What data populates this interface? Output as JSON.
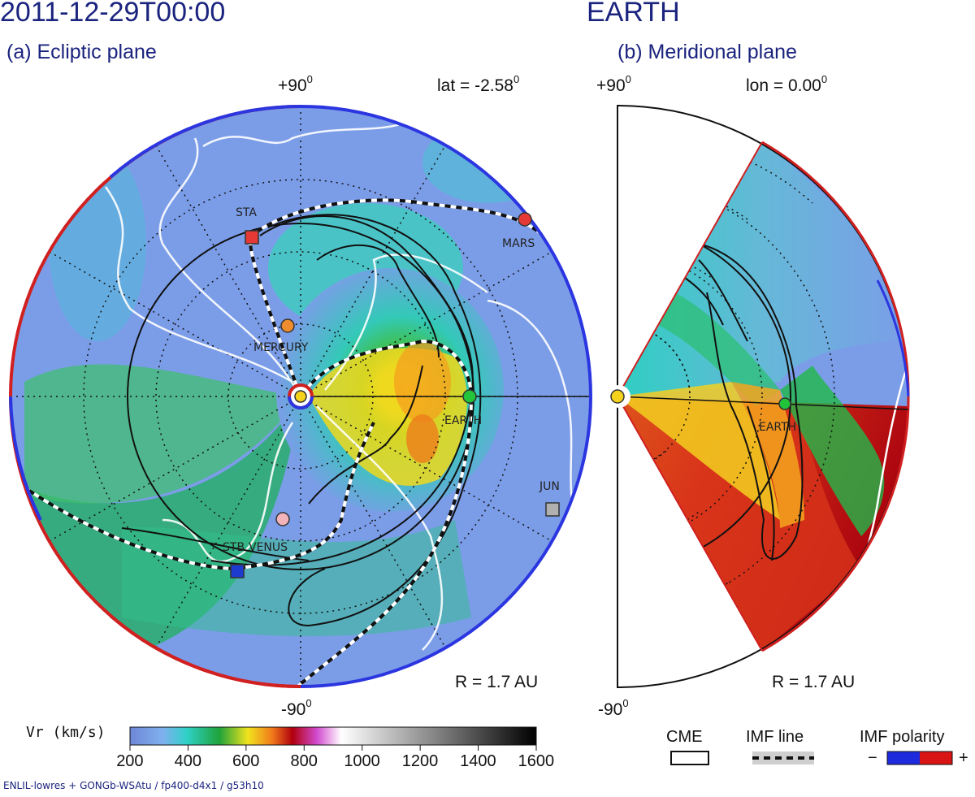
{
  "header": {
    "datetime": "2011-12-29T00:00",
    "target": "EARTH",
    "panel_a": "(a) Ecliptic plane",
    "panel_b": "(b) Meridional plane"
  },
  "panel_a": {
    "top_label": "+90",
    "bottom_label": "-90",
    "degree_sup": "0",
    "lat_label": "lat = -2.58",
    "radius_label": "R = 1.7 AU",
    "bodies": [
      {
        "name": "STA",
        "shape": "square",
        "color": "#e53935"
      },
      {
        "name": "MARS",
        "shape": "circle",
        "color": "#e53935"
      },
      {
        "name": "MERCURY",
        "shape": "circle",
        "color": "#ef8c2e"
      },
      {
        "name": "EARTH",
        "shape": "circle",
        "color": "#22c53a"
      },
      {
        "name": "JUN",
        "shape": "square",
        "color": "#b0b0b0"
      },
      {
        "name": "STB",
        "shape": "square",
        "color": "#1e3bd0"
      },
      {
        "name": "VENUS",
        "shape": "circle",
        "color": "#f2b3bb"
      }
    ]
  },
  "panel_b": {
    "top_label": "+90",
    "bottom_label": "-90",
    "degree_sup": "0",
    "lon_label": "lon = 0.00",
    "radius_label": "R = 1.7 AU",
    "earth_label": "EARTH"
  },
  "colorbar": {
    "label": "Vr  (km/s)",
    "ticks": [
      "200",
      "400",
      "600",
      "800",
      "1000",
      "1200",
      "1400",
      "1600"
    ],
    "min": 200,
    "max": 1600
  },
  "legend": {
    "cme": "CME",
    "imf_line": "IMF line",
    "imf_polarity": "IMF polarity",
    "minus": "−",
    "plus": "+"
  },
  "footer": "ENLIL-lowres + GONGb-WSAtu / fp400-d4x1 / g53h10",
  "chart_data": {
    "type": "heatmap",
    "title": "2011-12-29T00:00 EARTH",
    "quantity": "Vr  (km/s)",
    "color_range": [
      200,
      1600
    ],
    "panels": [
      "(a) Ecliptic plane",
      "(b) Meridional plane"
    ],
    "radius_AU": 1.7,
    "latitude_deg": -2.58,
    "longitude_deg": 0.0
  }
}
